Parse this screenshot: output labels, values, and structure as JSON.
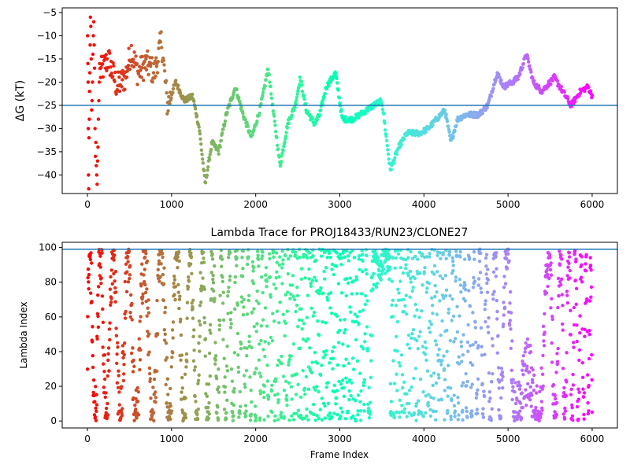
{
  "chart_data": [
    {
      "type": "scatter",
      "title": "",
      "xlabel": "",
      "ylabel": "ΔG (kT)",
      "xlim": [
        -300,
        6300
      ],
      "ylim": [
        -44,
        -4
      ],
      "xticks": [
        0,
        1000,
        2000,
        3000,
        4000,
        5000,
        6000
      ],
      "yticks": [
        -40,
        -35,
        -30,
        -25,
        -20,
        -15,
        -10,
        -5
      ],
      "hline": -25,
      "colormap": "rainbow",
      "n_frames": 6000,
      "trace_keypoints": [
        [
          150,
          -18
        ],
        [
          250,
          -15
        ],
        [
          350,
          -21
        ],
        [
          450,
          -19
        ],
        [
          520,
          -13
        ],
        [
          600,
          -18
        ],
        [
          700,
          -16
        ],
        [
          800,
          -18
        ],
        [
          880,
          -11
        ],
        [
          950,
          -25
        ],
        [
          1050,
          -20
        ],
        [
          1150,
          -24
        ],
        [
          1250,
          -23
        ],
        [
          1330,
          -30
        ],
        [
          1400,
          -42
        ],
        [
          1480,
          -33
        ],
        [
          1560,
          -35
        ],
        [
          1650,
          -27
        ],
        [
          1760,
          -21
        ],
        [
          1850,
          -27
        ],
        [
          1950,
          -32
        ],
        [
          2050,
          -26
        ],
        [
          2150,
          -17
        ],
        [
          2200,
          -25
        ],
        [
          2290,
          -38
        ],
        [
          2380,
          -29
        ],
        [
          2470,
          -25
        ],
        [
          2530,
          -19
        ],
        [
          2600,
          -26
        ],
        [
          2700,
          -29
        ],
        [
          2760,
          -27
        ],
        [
          2840,
          -21
        ],
        [
          2950,
          -18
        ],
        [
          3030,
          -28
        ],
        [
          3150,
          -28
        ],
        [
          3240,
          -27
        ],
        [
          3400,
          -25
        ],
        [
          3500,
          -24
        ],
        [
          3600,
          -39
        ],
        [
          3700,
          -34
        ],
        [
          3800,
          -31
        ],
        [
          3950,
          -31
        ],
        [
          4050,
          -30
        ],
        [
          4150,
          -28
        ],
        [
          4250,
          -26
        ],
        [
          4320,
          -33
        ],
        [
          4400,
          -28
        ],
        [
          4500,
          -27
        ],
        [
          4650,
          -27
        ],
        [
          4760,
          -25
        ],
        [
          4870,
          -18
        ],
        [
          4950,
          -21
        ],
        [
          5050,
          -20
        ],
        [
          5120,
          -19
        ],
        [
          5220,
          -14
        ],
        [
          5300,
          -20
        ],
        [
          5400,
          -22
        ],
        [
          5550,
          -19
        ],
        [
          5650,
          -22
        ],
        [
          5750,
          -25
        ],
        [
          5860,
          -22
        ],
        [
          5950,
          -21
        ],
        [
          6000,
          -23
        ]
      ],
      "early_points": [
        [
          2,
          -10
        ],
        [
          5,
          -16
        ],
        [
          8,
          -20
        ],
        [
          10,
          -30
        ],
        [
          12,
          -40
        ],
        [
          15,
          -43
        ],
        [
          18,
          -32
        ],
        [
          22,
          -28
        ],
        [
          25,
          -22
        ],
        [
          28,
          -18
        ],
        [
          32,
          -12
        ],
        [
          35,
          -6
        ],
        [
          40,
          -8
        ],
        [
          45,
          -15
        ],
        [
          50,
          -26
        ],
        [
          55,
          -24
        ],
        [
          60,
          -20
        ],
        [
          65,
          -14
        ],
        [
          70,
          -10
        ],
        [
          75,
          -7
        ],
        [
          80,
          -12
        ],
        [
          85,
          -17
        ],
        [
          90,
          -30
        ],
        [
          95,
          -36
        ],
        [
          100,
          -33
        ],
        [
          105,
          -38
        ],
        [
          110,
          -40
        ],
        [
          115,
          -42
        ],
        [
          120,
          -37
        ],
        [
          125,
          -34
        ],
        [
          130,
          -28
        ],
        [
          135,
          -24
        ],
        [
          140,
          -20
        ],
        [
          145,
          -16
        ]
      ]
    },
    {
      "type": "scatter",
      "title": "Lambda Trace for PROJ18433/RUN23/CLONE27",
      "xlabel": "Frame Index",
      "ylabel": "Lambda Index",
      "xlim": [
        -300,
        6300
      ],
      "ylim": [
        -4,
        103
      ],
      "xticks": [
        0,
        1000,
        2000,
        3000,
        4000,
        5000,
        6000
      ],
      "yticks": [
        0,
        20,
        40,
        60,
        80,
        100
      ],
      "hline": 99,
      "colormap": "rainbow",
      "n_frames": 6000,
      "lambda_range": [
        0,
        99
      ]
    }
  ]
}
